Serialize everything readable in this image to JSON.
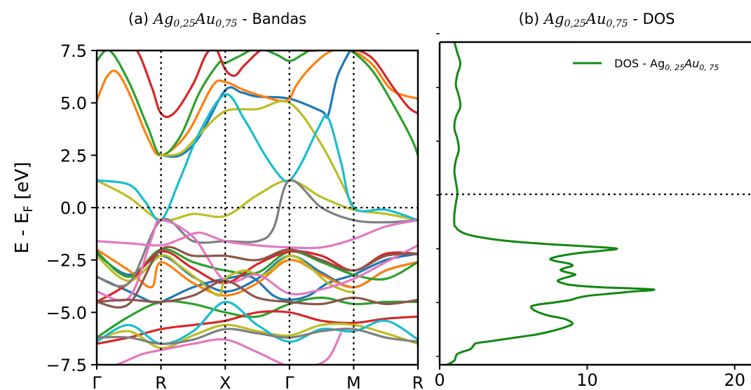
{
  "chart_data": [
    {
      "type": "line",
      "title_prefix": "(a) ",
      "title_math": "Ag",
      "title_sub1": "0,25",
      "title_math2": "Au",
      "title_sub2": "0,75",
      "title_suffix": " - Bandas",
      "ylabel": "E - E",
      "ylabel_sub": "F",
      "ylabel_unit": " [eV]",
      "ylim": [
        -7.5,
        7.5
      ],
      "yticks": [
        "7.5",
        "5.0",
        "2.5",
        "0.0",
        "−2.5",
        "−5.0",
        "−7.5"
      ],
      "kpoints": [
        "Γ",
        "R",
        "X",
        "Γ",
        "M",
        "R"
      ],
      "kpos": [
        0,
        1,
        2,
        3,
        4,
        5
      ],
      "fermi_level": 0.0,
      "series": [
        {
          "color": "#1f77b4",
          "x": [
            0,
            0.5,
            0.85,
            1,
            1.5,
            2,
            2.4,
            2.75,
            3,
            3.3,
            3.6,
            4,
            4.5,
            5
          ],
          "y": [
            -3.3,
            -4.0,
            -4.5,
            -4.5,
            -3.8,
            -3.4,
            -3.3,
            -4.2,
            -4.4,
            -4.2,
            -3.6,
            -3.2,
            -2.5,
            -2.2
          ]
        },
        {
          "color": "#1f77b4",
          "x": [
            1,
            1.3,
            1.6,
            2,
            2.25,
            2.5,
            3,
            3.5,
            3.6,
            3.75,
            4
          ],
          "y": [
            2.5,
            2.5,
            3.4,
            5.6,
            5.5,
            5.3,
            5.2,
            4.6,
            4.4,
            6.3,
            7.8
          ]
        },
        {
          "color": "#1f77b4",
          "x": [
            0,
            0.5,
            1,
            1.5,
            2,
            2.5,
            3,
            3.5,
            4,
            4.5,
            5
          ],
          "y": [
            -2.2,
            -3.2,
            -2.3,
            -3.3,
            -4.0,
            -3.4,
            -2.3,
            -3.1,
            -3.8,
            -3.0,
            -2.6
          ]
        },
        {
          "color": "#ff7f0e",
          "x": [
            0,
            0.15,
            0.3,
            0.5,
            0.8,
            1,
            1.4,
            1.8,
            2,
            2.3,
            2.6,
            2.85,
            3,
            3.1,
            3.3,
            3.6,
            3.9,
            4,
            4.3,
            4.6,
            5
          ],
          "y": [
            5.1,
            6.2,
            6.5,
            5.5,
            3.3,
            2.5,
            3.5,
            5.8,
            6.0,
            5.6,
            5.3,
            5.1,
            5.2,
            5.8,
            6.6,
            7.4,
            7.6,
            7.5,
            6.8,
            5.6,
            5.2
          ]
        },
        {
          "color": "#ff7f0e",
          "x": [
            0,
            0.5,
            0.85,
            1,
            1.5,
            2,
            2.5,
            3,
            3.5,
            4,
            4.5,
            5
          ],
          "y": [
            -2.0,
            -3.0,
            -3.8,
            -2.6,
            -3.6,
            -4.2,
            -3.6,
            -2.5,
            -3.2,
            -3.8,
            -3.0,
            -2.6
          ]
        },
        {
          "color": "#2ca02c",
          "x": [
            0,
            0.2,
            0.5,
            0.8,
            1,
            1.3,
            1.6,
            1.9,
            2,
            2.2,
            2.5,
            2.8,
            3,
            3.2,
            3.5,
            3.8,
            4,
            4.3,
            4.6,
            4.9,
            5
          ],
          "y": [
            7.0,
            7.5,
            6.0,
            3.8,
            2.5,
            3.4,
            5.5,
            6.9,
            6.9,
            7.2,
            7.6,
            7.3,
            7.0,
            7.3,
            7.8,
            7.6,
            7.4,
            6.5,
            5.0,
            3.3,
            2.5
          ]
        },
        {
          "color": "#2ca02c",
          "x": [
            0,
            0.5,
            1,
            1.5,
            2,
            2.5,
            3,
            3.5,
            4,
            4.5,
            5
          ],
          "y": [
            -6.2,
            -5.2,
            -4.5,
            -4.6,
            -5.0,
            -5.2,
            -4.6,
            -4.3,
            -4.6,
            -4.5,
            -4.5
          ]
        },
        {
          "color": "#2ca02c",
          "x": [
            0,
            0.5,
            1,
            1.5,
            2,
            2.5,
            3,
            3.5,
            4,
            4.5,
            5
          ],
          "y": [
            -2.1,
            -3.3,
            -2.0,
            -2.6,
            -3.0,
            -3.1,
            -2.1,
            -2.6,
            -3.2,
            -3.4,
            -2.6
          ]
        },
        {
          "color": "#d62728",
          "x": [
            0,
            0.3,
            0.6,
            0.85,
            1,
            1.2,
            1.5,
            1.7,
            1.85,
            2,
            2.15,
            2.3,
            2.6,
            2.9,
            3,
            3.2,
            3.4,
            3.7,
            3.9,
            4,
            4.3,
            4.6,
            4.85,
            5
          ],
          "y": [
            7.6,
            7.6,
            7.6,
            5.8,
            4.5,
            4.5,
            5.9,
            7.3,
            7.6,
            6.6,
            6.3,
            6.8,
            7.6,
            7.6,
            7.6,
            7.5,
            7.5,
            7.6,
            7.6,
            7.6,
            7.1,
            5.8,
            4.8,
            4.5
          ]
        },
        {
          "color": "#d62728",
          "x": [
            0,
            0.5,
            1,
            1.5,
            2,
            2.5,
            3,
            3.5,
            4,
            4.5,
            5
          ],
          "y": [
            -4.5,
            -3.6,
            -2.1,
            -2.9,
            -3.6,
            -2.7,
            -2.1,
            -2.3,
            -3.0,
            -2.2,
            -2.2
          ]
        },
        {
          "color": "#d62728",
          "x": [
            0,
            0.5,
            1,
            1.5,
            2,
            2.5,
            3,
            3.5,
            4,
            4.5,
            5
          ],
          "y": [
            -6.5,
            -6.2,
            -5.8,
            -5.6,
            -5.4,
            -5.0,
            -5.0,
            -5.4,
            -5.5,
            -5.3,
            -5.2
          ]
        },
        {
          "color": "#bcbd22",
          "x": [
            0,
            0.5,
            1,
            1.3,
            1.6,
            1.9,
            2,
            2.3,
            2.6,
            3,
            3.3,
            3.6,
            3.9,
            4
          ],
          "y": [
            -2.3,
            -3.5,
            -2.3,
            -2.8,
            -3.5,
            -4.2,
            -3.4,
            -3.0,
            -3.2,
            -2.3,
            -2.8,
            -3.6,
            -4.0,
            -4.0
          ]
        },
        {
          "color": "#bcbd22",
          "x": [
            1,
            1.3,
            1.6,
            2,
            2.5,
            3,
            3.5,
            4
          ],
          "y": [
            2.5,
            2.6,
            3.5,
            4.6,
            4.7,
            5.0,
            3.0,
            0.0
          ]
        },
        {
          "color": "#bcbd22",
          "x": [
            0,
            0.5,
            1,
            1.5,
            2,
            2.5,
            3,
            3.5,
            4,
            4.5,
            5
          ],
          "y": [
            1.3,
            0.5,
            -0.6,
            -0.3,
            -0.4,
            0.6,
            1.3,
            0.5,
            -0.1,
            -0.3,
            -0.6
          ]
        },
        {
          "color": "#bcbd22",
          "x": [
            0,
            0.5,
            1,
            1.5,
            2,
            2.5,
            3,
            3.5,
            4,
            4.5,
            5
          ],
          "y": [
            -6.3,
            -5.9,
            -6.7,
            -6.1,
            -5.6,
            -5.9,
            -6.1,
            -5.6,
            -5.6,
            -6.0,
            -6.5
          ]
        },
        {
          "color": "#17becf",
          "x": [
            0,
            0.5,
            0.75,
            1,
            1.3,
            1.6,
            2,
            2.3,
            2.6,
            2.85,
            3,
            3.2,
            3.45,
            3.6,
            3.8,
            4,
            4.5,
            5
          ],
          "y": [
            1.3,
            1.1,
            0.3,
            -0.6,
            1.4,
            3.6,
            5.4,
            4.2,
            2.6,
            1.5,
            1.3,
            2.2,
            3.8,
            4.3,
            2.2,
            0.0,
            -0.1,
            -0.6
          ]
        },
        {
          "color": "#17becf",
          "x": [
            0,
            0.5,
            1,
            1.5,
            2,
            2.5,
            3,
            3.5,
            4,
            4.5,
            5
          ],
          "y": [
            -6.4,
            -5.6,
            -6.5,
            -5.9,
            -4.5,
            -5.6,
            -6.4,
            -5.8,
            -5.9,
            -5.4,
            -6.3
          ]
        },
        {
          "color": "#7f7f7f",
          "x": [
            0,
            0.5,
            1,
            1.5,
            2,
            2.5,
            2.75,
            3,
            3.5,
            4,
            4.5,
            5
          ],
          "y": [
            -3.3,
            -3.6,
            -0.6,
            -1.6,
            -1.6,
            -1.6,
            -1.0,
            1.3,
            0.0,
            -0.6,
            -0.7,
            -0.6
          ]
        },
        {
          "color": "#7f7f7f",
          "x": [
            0,
            0.5,
            1,
            1.5,
            2,
            2.5,
            3,
            3.5,
            4,
            4.5,
            5
          ],
          "y": [
            -6.2,
            -6.2,
            -6.5,
            -6.3,
            -5.8,
            -6.0,
            -6.2,
            -5.9,
            -5.8,
            -6.2,
            -6.4
          ]
        },
        {
          "color": "#e377c2",
          "x": [
            0,
            0.5,
            1,
            1.3,
            1.6,
            2,
            2.5,
            3,
            3.5,
            4,
            4.5,
            5
          ],
          "y": [
            -1.6,
            -1.7,
            -1.8,
            -1.5,
            -1.2,
            -1.6,
            -1.8,
            -1.9,
            -1.9,
            -1.5,
            -0.9,
            -0.6
          ]
        },
        {
          "color": "#e377c2",
          "x": [
            0,
            0.5,
            0.85,
            1,
            1.5,
            2,
            2.5,
            3,
            3.5,
            4,
            4.5,
            5
          ],
          "y": [
            -4.0,
            -4.3,
            -1.5,
            -0.6,
            -1.4,
            -3.5,
            -3.2,
            -4.1,
            -3.9,
            -3.4,
            -2.6,
            -1.8
          ]
        },
        {
          "color": "#e377c2",
          "x": [
            0,
            0.3,
            0.7,
            1,
            1.5,
            2,
            2.5,
            3,
            3.3,
            3.6,
            3.8
          ],
          "y": [
            -7.6,
            -7.5,
            -7.0,
            -6.8,
            -6.5,
            -6.3,
            -6.9,
            -7.6,
            -7.6,
            -7.2,
            -6.0
          ]
        },
        {
          "color": "#8c564b",
          "x": [
            0,
            0.5,
            1,
            1.5,
            2,
            2.5,
            3,
            3.5,
            4,
            4.5,
            5
          ],
          "y": [
            -4.5,
            -4.6,
            -2.0,
            -2.3,
            -2.3,
            -2.5,
            -2.0,
            -2.5,
            -3.0,
            -2.3,
            -2.2
          ]
        },
        {
          "color": "#8c564b",
          "x": [
            0,
            0.5,
            1,
            1.5,
            2,
            2.5,
            3,
            3.5,
            4,
            4.5,
            5
          ],
          "y": [
            -4.5,
            -4.4,
            -4.5,
            -4.2,
            -3.5,
            -4.3,
            -4.5,
            -4.6,
            -4.3,
            -4.6,
            -4.4
          ]
        }
      ]
    },
    {
      "type": "line",
      "title_prefix": "(b) ",
      "title_math": "Ag",
      "title_sub1": "0,25",
      "title_math2": "Au",
      "title_sub2": "0,75",
      "title_suffix": " - DOS",
      "xlim": [
        0,
        21
      ],
      "xticks": [
        "0",
        "10",
        "20"
      ],
      "xtick_values": [
        0,
        10,
        20
      ],
      "ylim": [
        -7.5,
        7.5
      ],
      "fermi_level": 0.0,
      "legend_position": "top-right",
      "series": [
        {
          "name": "DOS - Ag",
          "name_sub1": "0, 25",
          "name_mid": "Au",
          "name_sub2": "0, 75",
          "color": "#118811",
          "y": [
            -7.5,
            -7.3,
            -7.0,
            -6.8,
            -6.7,
            -6.6,
            -6.5,
            -6.4,
            -6.3,
            -6.2,
            -6.1,
            -6.0,
            -5.8,
            -5.6,
            -5.4,
            -5.3,
            -5.2,
            -5.0,
            -4.8,
            -4.7,
            -4.6,
            -4.5,
            -4.4,
            -4.3,
            -4.2,
            -4.1,
            -4.0,
            -3.9,
            -3.8,
            -3.7,
            -3.6,
            -3.5,
            -3.4,
            -3.3,
            -3.2,
            -3.1,
            -3.0,
            -2.9,
            -2.8,
            -2.7,
            -2.6,
            -2.5,
            -2.4,
            -2.3,
            -2.2,
            -2.1,
            -2.0,
            -1.9,
            -1.8,
            -1.7,
            -1.6,
            -1.5,
            -1.4,
            -1.3,
            -1.2,
            -1.1,
            -1.0,
            -0.5,
            0,
            0.5,
            1,
            1.5,
            2,
            2.5,
            3,
            3.5,
            4,
            4.5,
            5,
            5.5,
            6,
            6.5,
            7,
            7.5
          ],
          "x": [
            0.5,
            1.0,
            1.2,
            2.0,
            2.2,
            2.3,
            2.5,
            3.5,
            4.5,
            5.5,
            6.5,
            7.2,
            8.3,
            9.0,
            8.6,
            8.0,
            7.3,
            6.5,
            6.2,
            6.7,
            7.8,
            8.8,
            9.3,
            10.0,
            11.5,
            13.0,
            14.5,
            11.0,
            9.0,
            8.3,
            8.0,
            8.3,
            8.8,
            9.2,
            8.6,
            8.2,
            8.5,
            9.0,
            8.8,
            8.0,
            7.5,
            7.8,
            8.5,
            9.5,
            11.0,
            12.0,
            10.0,
            7.5,
            5.5,
            4.0,
            3.0,
            2.2,
            1.7,
            1.4,
            1.2,
            1.1,
            1.0,
            1.0,
            1.1,
            1.2,
            1.1,
            1.0,
            1.1,
            1.3,
            1.2,
            1.0,
            1.1,
            1.4,
            1.3,
            1.1,
            1.2,
            1.4,
            1.2,
            1.0
          ]
        }
      ]
    }
  ]
}
